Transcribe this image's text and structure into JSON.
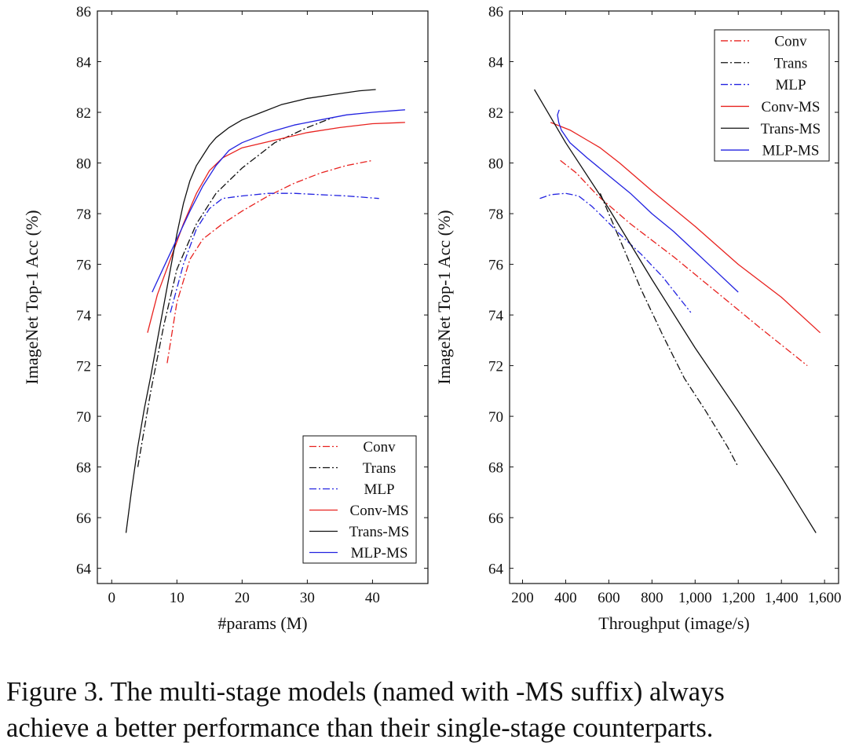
{
  "caption": {
    "line1": "Figure 3. The multi-stage models (named with -MS suffix) always",
    "line2": "achieve a better performance than their single-stage counterparts."
  },
  "colors": {
    "conv": "#e8221f",
    "trans": "#111111",
    "mlp": "#2222e0"
  },
  "chart_data": [
    {
      "type": "line",
      "id": "params",
      "xlabel": "#params (M)",
      "ylabel": "ImageNet Top-1 Acc (%)",
      "xlim": [
        -2.2,
        48.5
      ],
      "ylim": [
        63.4,
        86
      ],
      "xticks": [
        0,
        10,
        20,
        30,
        40
      ],
      "xtick_labels": [
        "0",
        "10",
        "20",
        "30",
        "40"
      ],
      "yticks": [
        64,
        66,
        68,
        70,
        72,
        74,
        76,
        78,
        80,
        82,
        84,
        86
      ],
      "ytick_labels": [
        "64",
        "66",
        "68",
        "70",
        "72",
        "74",
        "76",
        "78",
        "80",
        "82",
        "84",
        "86"
      ],
      "legend": {
        "position": "bottom-right"
      },
      "series": [
        {
          "name": "Conv",
          "style": "dashdot",
          "color": "conv",
          "x": [
            8.5,
            10,
            12,
            14,
            17,
            20,
            24,
            28,
            32,
            36,
            40
          ],
          "y": [
            72.1,
            74.5,
            76.2,
            77.0,
            77.6,
            78.1,
            78.7,
            79.2,
            79.6,
            79.9,
            80.1
          ]
        },
        {
          "name": "Trans",
          "style": "dashdot",
          "color": "trans",
          "x": [
            4,
            6,
            8,
            10,
            13,
            16,
            20,
            25,
            30,
            34
          ],
          "y": [
            68.0,
            71.0,
            73.6,
            75.8,
            77.6,
            78.8,
            79.8,
            80.8,
            81.4,
            81.8
          ]
        },
        {
          "name": "MLP",
          "style": "dashdot",
          "color": "mlp",
          "x": [
            9,
            11,
            13,
            15,
            17,
            20,
            24,
            28,
            32,
            36,
            41
          ],
          "y": [
            74.1,
            76.0,
            77.4,
            78.2,
            78.6,
            78.7,
            78.8,
            78.8,
            78.75,
            78.7,
            78.6
          ]
        },
        {
          "name": "Conv-MS",
          "style": "solid",
          "color": "conv",
          "x": [
            5.5,
            7,
            9,
            11,
            13,
            15,
            17,
            20,
            25,
            30,
            35,
            40,
            45
          ],
          "y": [
            73.3,
            74.8,
            76.2,
            77.6,
            78.8,
            79.7,
            80.2,
            80.6,
            80.9,
            81.2,
            81.4,
            81.55,
            81.6
          ]
        },
        {
          "name": "Trans-MS",
          "style": "solid",
          "color": "trans",
          "x": [
            2.2,
            3,
            4,
            5,
            6,
            7,
            8,
            9,
            10,
            11,
            12,
            13,
            14,
            15,
            16,
            18,
            20,
            23,
            26,
            30,
            34,
            38,
            40.5
          ],
          "y": [
            65.4,
            67.0,
            68.8,
            70.3,
            71.6,
            73.0,
            74.4,
            75.8,
            77.2,
            78.4,
            79.3,
            79.9,
            80.3,
            80.7,
            81.0,
            81.4,
            81.7,
            82.0,
            82.3,
            82.55,
            82.7,
            82.85,
            82.9
          ]
        },
        {
          "name": "MLP-MS",
          "style": "solid",
          "color": "mlp",
          "x": [
            6.2,
            8,
            10,
            12,
            14,
            16,
            18,
            20,
            24,
            28,
            32,
            36,
            40,
            45
          ],
          "y": [
            74.9,
            75.9,
            77.0,
            78.1,
            79.1,
            79.9,
            80.5,
            80.8,
            81.2,
            81.5,
            81.7,
            81.9,
            82.0,
            82.1
          ]
        }
      ]
    },
    {
      "type": "line",
      "id": "throughput",
      "xlabel": "Throughput (image/s)",
      "ylabel": "ImageNet Top-1 Acc (%)",
      "xlim": [
        140,
        1665
      ],
      "ylim": [
        63.4,
        86
      ],
      "xticks": [
        200,
        400,
        600,
        800,
        1000,
        1200,
        1400,
        1600
      ],
      "xtick_labels": [
        "200",
        "400",
        "600",
        "800",
        "1,000",
        "1,200",
        "1,400",
        "1,600"
      ],
      "yticks": [
        64,
        66,
        68,
        70,
        72,
        74,
        76,
        78,
        80,
        82,
        84,
        86
      ],
      "ytick_labels": [
        "64",
        "66",
        "68",
        "70",
        "72",
        "74",
        "76",
        "78",
        "80",
        "82",
        "84",
        "86"
      ],
      "legend": {
        "position": "top-right"
      },
      "series": [
        {
          "name": "Conv",
          "style": "dashdot",
          "color": "conv",
          "x": [
            375,
            450,
            550,
            700,
            900,
            1100,
            1300,
            1520
          ],
          "y": [
            80.1,
            79.6,
            78.7,
            77.6,
            76.3,
            74.9,
            73.5,
            72.0
          ]
        },
        {
          "name": "Trans",
          "style": "dashdot",
          "color": "trans",
          "x": [
            560,
            650,
            750,
            850,
            950,
            1050,
            1150,
            1200
          ],
          "y": [
            78.8,
            77.0,
            75.0,
            73.2,
            71.5,
            70.2,
            68.8,
            68.0
          ]
        },
        {
          "name": "MLP",
          "style": "dashdot",
          "color": "mlp",
          "x": [
            280,
            330,
            400,
            460,
            520,
            580,
            650,
            750,
            850,
            980
          ],
          "y": [
            78.6,
            78.75,
            78.8,
            78.7,
            78.3,
            77.8,
            77.2,
            76.4,
            75.5,
            74.1
          ]
        },
        {
          "name": "Conv-MS",
          "style": "solid",
          "color": "conv",
          "x": [
            330,
            420,
            500,
            560,
            650,
            800,
            1000,
            1200,
            1400,
            1580
          ],
          "y": [
            81.6,
            81.3,
            80.9,
            80.6,
            80.0,
            78.9,
            77.5,
            76.0,
            74.7,
            73.3
          ]
        },
        {
          "name": "Trans-MS",
          "style": "solid",
          "color": "trans",
          "x": [
            255,
            400,
            600,
            800,
            1000,
            1200,
            1400,
            1560
          ],
          "y": [
            82.9,
            80.8,
            78.2,
            75.4,
            72.7,
            70.2,
            67.6,
            65.4
          ]
        },
        {
          "name": "MLP-MS",
          "style": "solid",
          "color": "mlp",
          "x": [
            370,
            362,
            368,
            380,
            420,
            500,
            600,
            700,
            800,
            900,
            1000,
            1100,
            1200
          ],
          "y": [
            82.1,
            81.9,
            81.6,
            81.3,
            80.8,
            80.2,
            79.5,
            78.8,
            78.0,
            77.3,
            76.5,
            75.7,
            74.9
          ]
        }
      ]
    }
  ]
}
